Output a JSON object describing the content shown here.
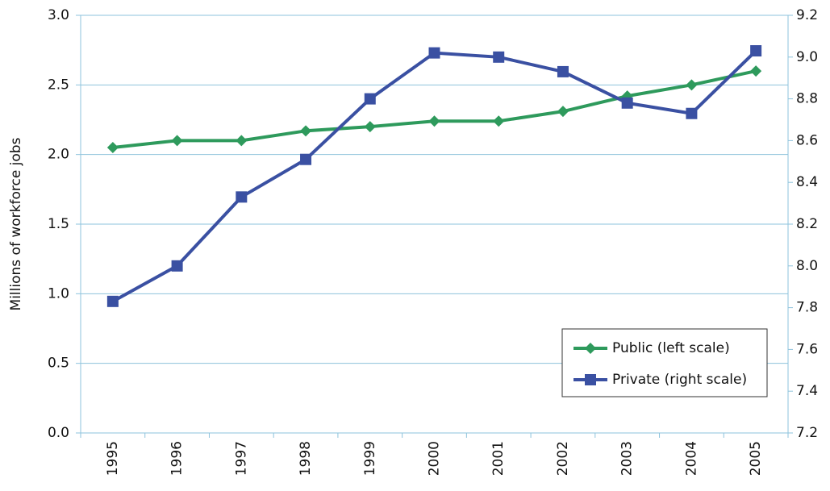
{
  "chart_data": {
    "type": "line",
    "y_label": "Millions of workforce jobs",
    "categories": [
      "1995",
      "1996",
      "1997",
      "1998",
      "1999",
      "2000",
      "2001",
      "2002",
      "2003",
      "2004",
      "2005"
    ],
    "series": [
      {
        "name": "Public (left scale)",
        "color": "#2e9a5c",
        "marker": "diamond",
        "values": [
          2.05,
          2.1,
          2.1,
          2.17,
          2.2,
          2.24,
          2.24,
          2.31,
          2.42,
          2.5,
          2.6
        ]
      },
      {
        "name": "Private (right scale)",
        "color": "#3a50a2",
        "marker": "square",
        "axis": "y2",
        "values": [
          7.83,
          8.0,
          8.33,
          8.51,
          8.8,
          9.02,
          9.0,
          8.93,
          8.78,
          8.73,
          9.03
        ]
      }
    ],
    "ylim": [
      0,
      3
    ],
    "yticks": [
      {
        "value": 0,
        "label": "0.0"
      },
      0.5,
      {
        "value": 1,
        "label": "1.0"
      },
      1.5,
      {
        "value": 2,
        "label": "2.0"
      },
      2.5,
      {
        "value": 3,
        "label": "3.0"
      }
    ],
    "y2lim": [
      7.2,
      9.2
    ],
    "y2ticks": [
      7.2,
      7.4,
      7.6,
      7.8,
      {
        "value": 8,
        "label": "8.0"
      },
      8.2,
      8.4,
      8.6,
      8.8,
      {
        "value": 9,
        "label": "9.0"
      },
      9.2
    ],
    "grid": true,
    "legend": "lower right"
  }
}
